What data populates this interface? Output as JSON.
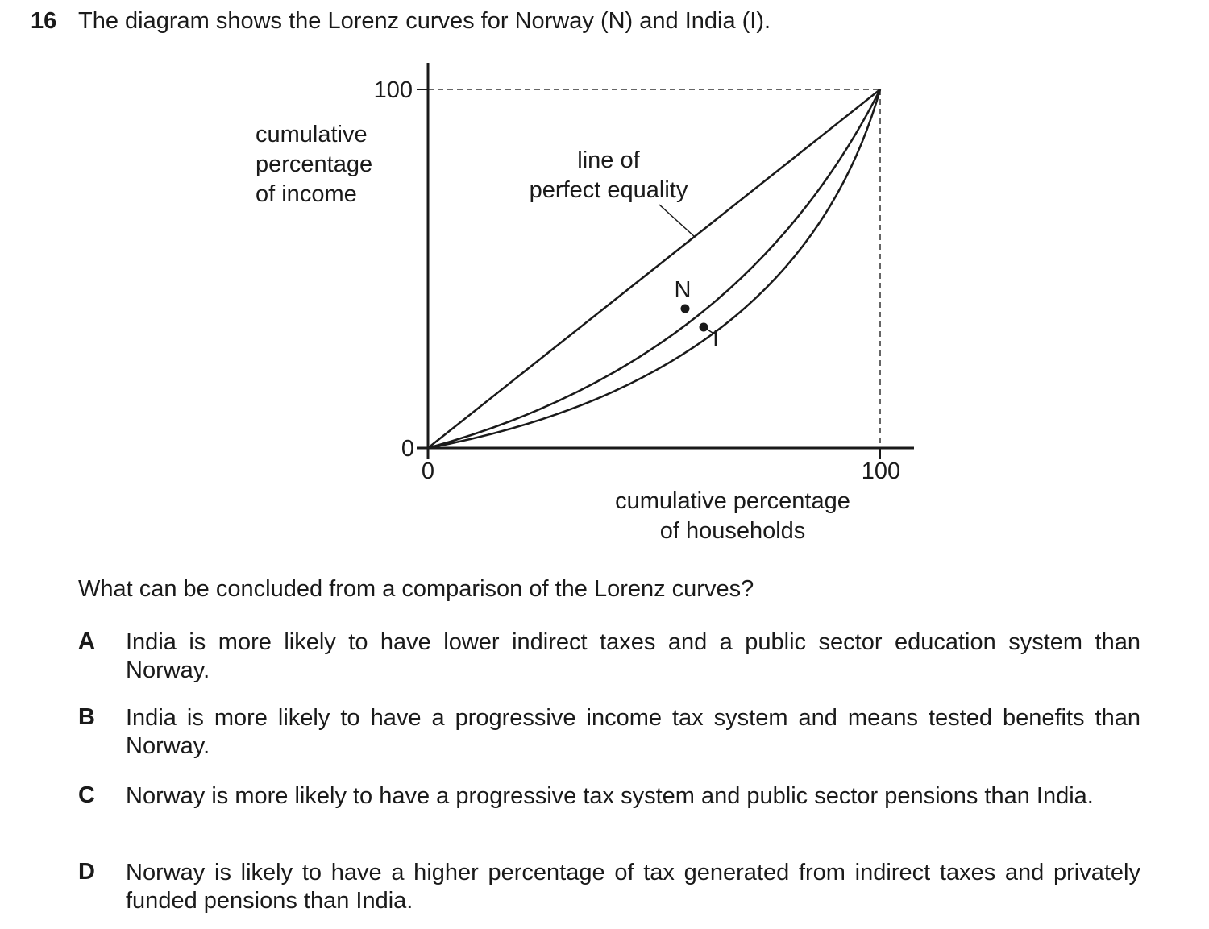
{
  "question": {
    "number": "16",
    "stem": "The diagram shows the Lorenz curves for Norway (N) and India (I).",
    "prompt": "What can be concluded from a comparison of the Lorenz curves?"
  },
  "diagram": {
    "y_axis_label": [
      "cumulative",
      "percentage",
      "of income"
    ],
    "x_axis_label": [
      "cumulative percentage",
      "of households"
    ],
    "y_ticks": [
      "100",
      "0"
    ],
    "x_ticks": [
      "0",
      "100"
    ],
    "equality_label": [
      "line of",
      "perfect equality"
    ],
    "curve_labels": {
      "norway": "N",
      "india": "I"
    }
  },
  "options": [
    {
      "letter": "A",
      "text": "India is more likely to have lower indirect taxes and a public sector education system than Norway."
    },
    {
      "letter": "B",
      "text": "India is more likely to have a progressive income tax system and means tested benefits than Norway."
    },
    {
      "letter": "C",
      "text": "Norway is more likely to have a progressive tax system and public sector pensions than India."
    },
    {
      "letter": "D",
      "text": "Norway is likely to have a higher percentage of tax generated from indirect taxes and privately funded pensions than India."
    }
  ]
}
